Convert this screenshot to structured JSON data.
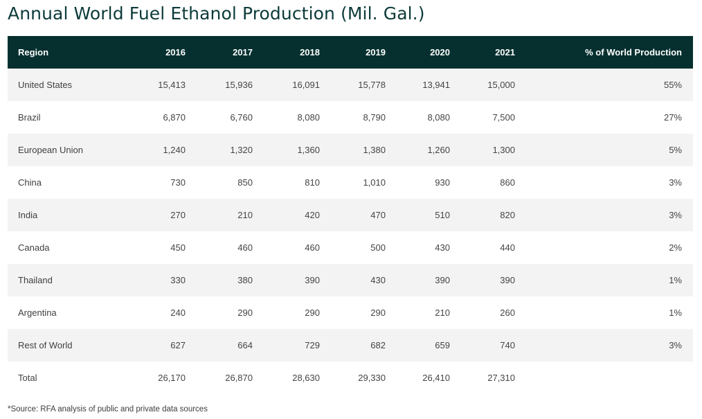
{
  "title": "Annual World Fuel Ethanol Production (Mil. Gal.)",
  "table": {
    "headers": [
      "Region",
      "2016",
      "2017",
      "2018",
      "2019",
      "2020",
      "2021",
      "% of World Production"
    ],
    "rows": [
      {
        "region": "United States",
        "values": [
          "15,413",
          "15,936",
          "16,091",
          "15,778",
          "13,941",
          "15,000"
        ],
        "pct": "55%"
      },
      {
        "region": "Brazil",
        "values": [
          "6,870",
          "6,760",
          "8,080",
          "8,790",
          "8,080",
          "7,500"
        ],
        "pct": "27%"
      },
      {
        "region": "European Union",
        "values": [
          "1,240",
          "1,320",
          "1,360",
          "1,380",
          "1,260",
          "1,300"
        ],
        "pct": "5%"
      },
      {
        "region": "China",
        "values": [
          "730",
          "850",
          "810",
          "1,010",
          "930",
          "860"
        ],
        "pct": "3%"
      },
      {
        "region": "India",
        "values": [
          "270",
          "210",
          "420",
          "470",
          "510",
          "820"
        ],
        "pct": "3%"
      },
      {
        "region": "Canada",
        "values": [
          "450",
          "460",
          "460",
          "500",
          "430",
          "440"
        ],
        "pct": "2%"
      },
      {
        "region": "Thailand",
        "values": [
          "330",
          "380",
          "390",
          "430",
          "390",
          "390"
        ],
        "pct": "1%"
      },
      {
        "region": "Argentina",
        "values": [
          "240",
          "290",
          "290",
          "290",
          "210",
          "260"
        ],
        "pct": "1%"
      },
      {
        "region": "Rest of World",
        "values": [
          "627",
          "664",
          "729",
          "682",
          "659",
          "740"
        ],
        "pct": "3%"
      },
      {
        "region": "Total",
        "values": [
          "26,170",
          "26,870",
          "28,630",
          "29,330",
          "26,410",
          "27,310"
        ],
        "pct": ""
      }
    ]
  },
  "source": "*Source: RFA analysis of public and private data sources",
  "colors": {
    "header_bg": "#05302f",
    "title": "#0d3a3a",
    "stripe": "#f3f3f3"
  }
}
